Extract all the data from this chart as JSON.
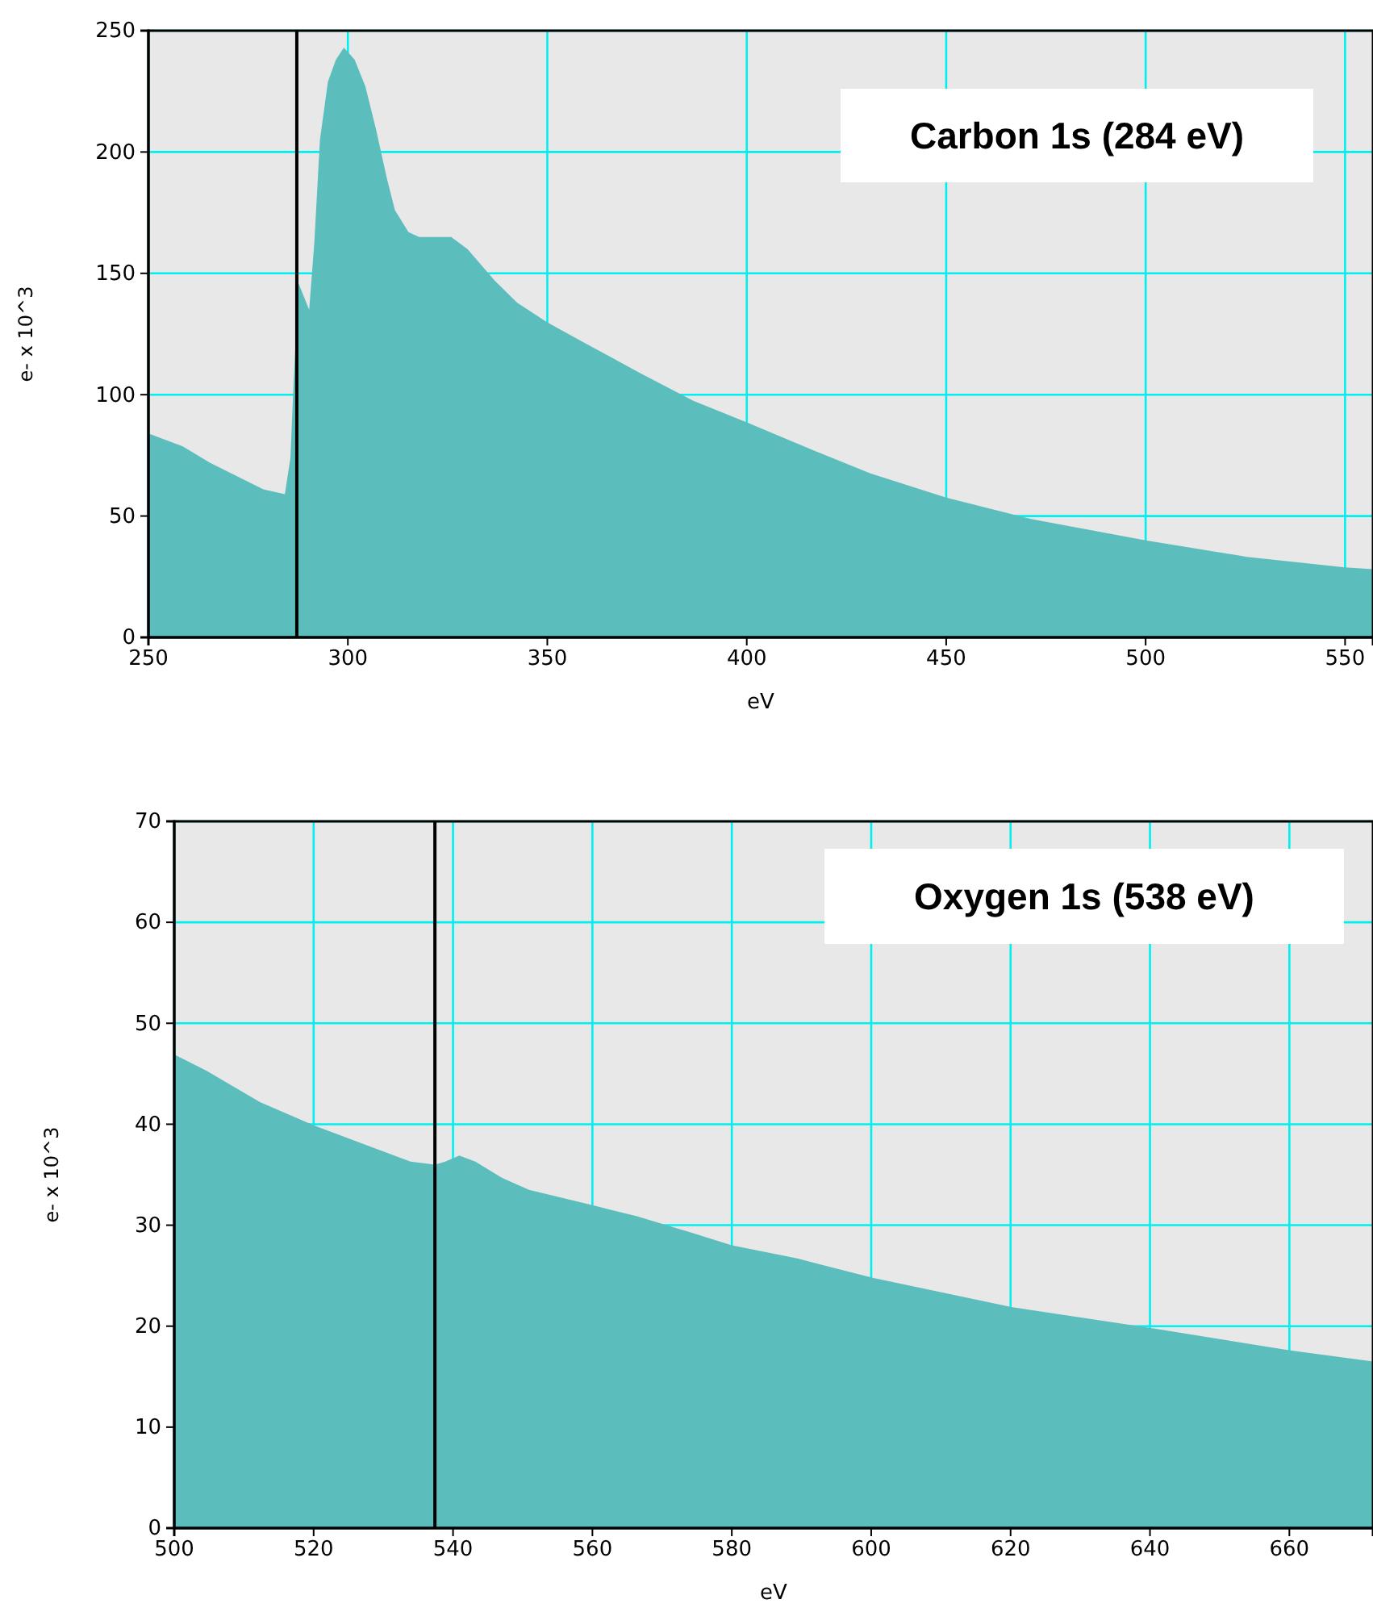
{
  "chart_data": [
    {
      "type": "area",
      "xlabel": "eV",
      "ylabel": "e- x 10^3",
      "color": "#5cbdbd",
      "grid": true,
      "xlim": [
        250,
        557
      ],
      "ylim": [
        0,
        250
      ],
      "xticks": [
        250,
        300,
        350,
        400,
        450,
        500,
        550
      ],
      "yticks": [
        0,
        50,
        100,
        150,
        200,
        250
      ],
      "x": [
        250,
        258.6,
        265.4,
        272.1,
        278.8,
        284.2,
        285.6,
        286.4,
        287.6,
        290.3,
        291.6,
        293,
        295,
        297,
        299,
        301.7,
        304.4,
        307.1,
        309.8,
        311.8,
        315.2,
        317.9,
        325.9,
        330,
        336.8,
        342.4,
        349.8,
        359.7,
        373.2,
        386.6,
        400,
        417.6,
        431,
        450,
        471.5,
        500,
        525.4,
        550,
        557
      ],
      "values": [
        84,
        78.7,
        72,
        66.5,
        61,
        59,
        74,
        105,
        146,
        135,
        163,
        205,
        229,
        238,
        243,
        238,
        227,
        209,
        189,
        176,
        167,
        165,
        165,
        160,
        147,
        138,
        130,
        121,
        109,
        97.5,
        88.6,
        76.5,
        67.6,
        57.6,
        48.7,
        40,
        33.2,
        28.8,
        28.1
      ],
      "ref_lines": [
        {
          "axis": "x",
          "value": 287.2,
          "color": "#000000"
        }
      ],
      "annotations": [
        "Carbon 1s (284 eV)"
      ]
    },
    {
      "type": "area",
      "xlabel": "eV",
      "ylabel": "e- x 10^3",
      "color": "#5cbdbd",
      "grid": true,
      "xlim": [
        500,
        672
      ],
      "ylim": [
        0,
        70
      ],
      "xticks": [
        500,
        520,
        540,
        560,
        580,
        600,
        620,
        640,
        660
      ],
      "yticks": [
        0,
        10,
        20,
        30,
        40,
        50,
        60,
        70
      ],
      "x": [
        500,
        504.6,
        512.3,
        520,
        527.7,
        533.9,
        537.4,
        538.9,
        540.9,
        543.2,
        547,
        550.9,
        559.9,
        566.3,
        574,
        580,
        589.4,
        600.2,
        620.1,
        640.3,
        660.1,
        672
      ],
      "values": [
        46.9,
        45.3,
        42.2,
        39.9,
        37.9,
        36.3,
        36,
        36.3,
        36.9,
        36.3,
        34.7,
        33.5,
        32,
        30.9,
        29.3,
        28,
        26.7,
        24.8,
        21.9,
        19.8,
        17.6,
        16.5
      ],
      "ref_lines": [
        {
          "axis": "x",
          "value": 537.4,
          "color": "#000000"
        }
      ],
      "annotations": [
        "Oxygen 1s (538 eV)"
      ]
    }
  ]
}
